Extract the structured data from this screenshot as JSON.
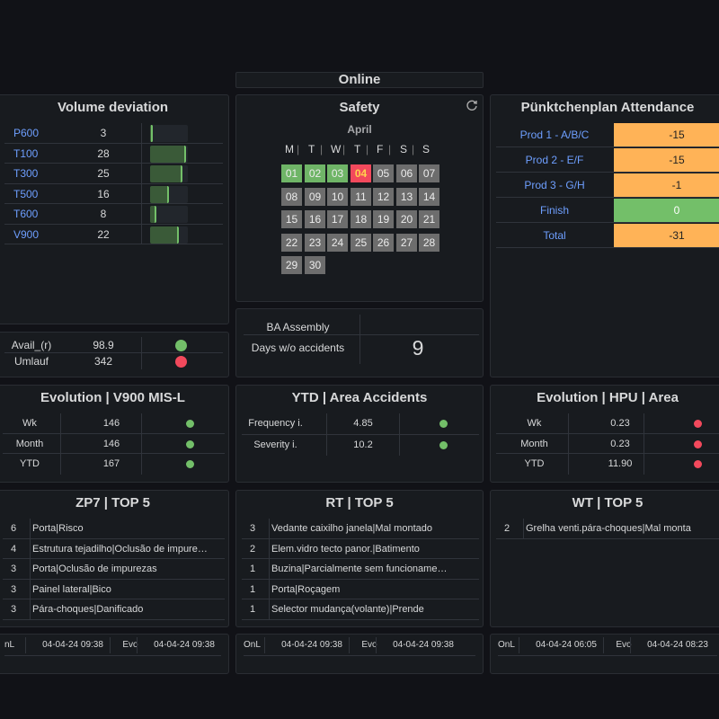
{
  "online": {
    "label": "Online"
  },
  "volume": {
    "title": "Volume deviation",
    "rows": [
      {
        "name": "P600",
        "value": "3",
        "fill": 0.05
      },
      {
        "name": "T100",
        "value": "28",
        "fill": 0.95
      },
      {
        "name": "T300",
        "value": "25",
        "fill": 0.85
      },
      {
        "name": "T500",
        "value": "16",
        "fill": 0.5
      },
      {
        "name": "T600",
        "value": "8",
        "fill": 0.17
      },
      {
        "name": "V900",
        "value": "22",
        "fill": 0.75
      }
    ],
    "status_rows": [
      {
        "name": "Avail_(r)",
        "value": "98.9",
        "status": "green"
      },
      {
        "name": "Umlauf",
        "value": "342",
        "status": "red"
      }
    ]
  },
  "safety": {
    "title": "Safety",
    "month": "April",
    "weekdays": [
      "M",
      "T",
      "W",
      "T",
      "F",
      "S",
      "S"
    ],
    "days": [
      {
        "d": "01",
        "s": "green"
      },
      {
        "d": "02",
        "s": "green"
      },
      {
        "d": "03",
        "s": "green"
      },
      {
        "d": "04",
        "s": "red"
      },
      {
        "d": "05",
        "s": "grey"
      },
      {
        "d": "06",
        "s": "grey"
      },
      {
        "d": "07",
        "s": "grey"
      },
      {
        "d": "08",
        "s": "grey"
      },
      {
        "d": "09",
        "s": "grey"
      },
      {
        "d": "10",
        "s": "grey"
      },
      {
        "d": "11",
        "s": "grey"
      },
      {
        "d": "12",
        "s": "grey"
      },
      {
        "d": "13",
        "s": "grey"
      },
      {
        "d": "14",
        "s": "grey"
      },
      {
        "d": "15",
        "s": "grey"
      },
      {
        "d": "16",
        "s": "grey"
      },
      {
        "d": "17",
        "s": "grey"
      },
      {
        "d": "18",
        "s": "grey"
      },
      {
        "d": "19",
        "s": "grey"
      },
      {
        "d": "20",
        "s": "grey"
      },
      {
        "d": "21",
        "s": "grey"
      },
      {
        "d": "22",
        "s": "grey"
      },
      {
        "d": "23",
        "s": "grey"
      },
      {
        "d": "24",
        "s": "grey"
      },
      {
        "d": "25",
        "s": "grey"
      },
      {
        "d": "26",
        "s": "grey"
      },
      {
        "d": "27",
        "s": "grey"
      },
      {
        "d": "28",
        "s": "grey"
      },
      {
        "d": "29",
        "s": "grey"
      },
      {
        "d": "30",
        "s": "grey"
      }
    ]
  },
  "accidents": {
    "area_label": "BA Assembly",
    "days_label": "Days w/o accidents",
    "days_value": "9"
  },
  "attendance": {
    "title": "Pünktchenplan Attendance",
    "rows": [
      {
        "name": "Prod 1 - A/B/C",
        "value": "-15",
        "status": "orange"
      },
      {
        "name": "Prod 2 - E/F",
        "value": "-15",
        "status": "orange"
      },
      {
        "name": "Prod 3 - G/H",
        "value": "-1",
        "status": "orange"
      },
      {
        "name": "Finish",
        "value": "0",
        "status": "green"
      },
      {
        "name": "Total",
        "value": "-31",
        "status": "orange"
      }
    ]
  },
  "evo_v900": {
    "title": "Evolution | V900 MIS-L",
    "rows": [
      {
        "name": "Wk",
        "value": "146",
        "status": "green"
      },
      {
        "name": "Month",
        "value": "146",
        "status": "green"
      },
      {
        "name": "YTD",
        "value": "167",
        "status": "green"
      }
    ]
  },
  "ytd_acc": {
    "title": "YTD | Area Accidents",
    "rows": [
      {
        "name": "Frequency i.",
        "value": "4.85",
        "status": "green"
      },
      {
        "name": "Severity i.",
        "value": "10.2",
        "status": "green"
      }
    ]
  },
  "evo_hpu": {
    "title": "Evolution | HPU | Area",
    "rows": [
      {
        "name": "Wk",
        "value": "0.23",
        "status": "red"
      },
      {
        "name": "Month",
        "value": "0.23",
        "status": "red"
      },
      {
        "name": "YTD",
        "value": "11.90",
        "status": "red"
      }
    ]
  },
  "zp7": {
    "title": "ZP7 | TOP 5",
    "rows": [
      {
        "n": "6",
        "t": "Porta|Risco"
      },
      {
        "n": "4",
        "t": "Estrutura tejadilho|Oclusão de impure…"
      },
      {
        "n": "3",
        "t": "Porta|Oclusão de impurezas"
      },
      {
        "n": "3",
        "t": "Painel lateral|Bico"
      },
      {
        "n": "3",
        "t": "Pára-choques|Danificado"
      }
    ],
    "footer": {
      "a": "nL",
      "b": "04-04-24 09:38",
      "c": "Evo",
      "d": "04-04-24 09:38"
    }
  },
  "rt": {
    "title": "RT | TOP 5",
    "rows": [
      {
        "n": "3",
        "t": "Vedante caixilho janela|Mal montado"
      },
      {
        "n": "2",
        "t": "Elem.vidro tecto panor.|Batimento"
      },
      {
        "n": "1",
        "t": "Buzina|Parcialmente sem funcioname…"
      },
      {
        "n": "1",
        "t": "Porta|Roçagem"
      },
      {
        "n": "1",
        "t": "Selector mudança(volante)|Prende"
      }
    ],
    "footer": {
      "a": "OnL",
      "b": "04-04-24 09:38",
      "c": "Evo",
      "d": "04-04-24 09:38"
    }
  },
  "wt": {
    "title": "WT | TOP 5",
    "rows": [
      {
        "n": "2",
        "t": "Grelha venti.pára-choques|Mal monta"
      }
    ],
    "footer": {
      "a": "OnL",
      "b": "04-04-24 06:05",
      "c": "Evo",
      "d": "04-04-24 08:23"
    }
  },
  "colors": {
    "green": "#73bf69",
    "red": "#f2495c",
    "orange": "#ffb357",
    "attendance_green": "#73bf69",
    "link": "#6e9fff",
    "panel_bg": "#181b1f"
  }
}
